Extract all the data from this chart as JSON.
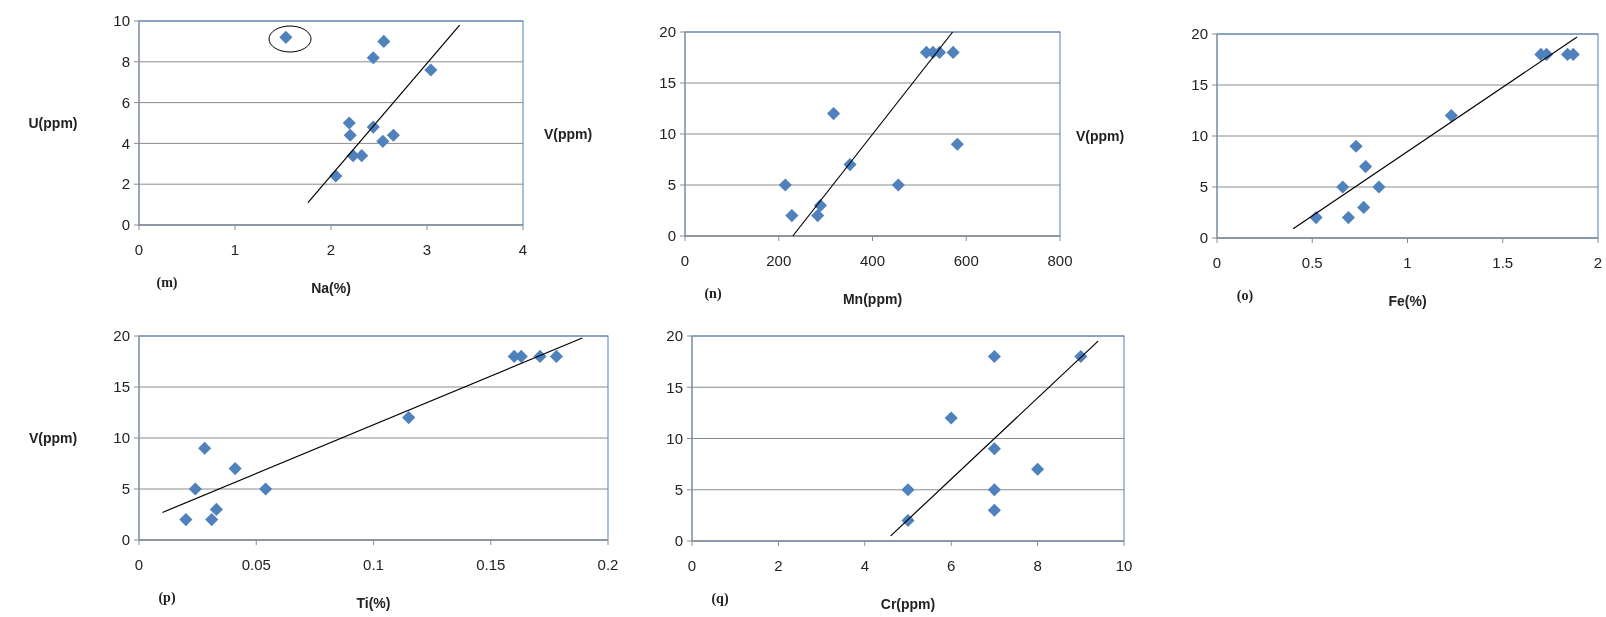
{
  "chart_data": [
    {
      "type": "scatter",
      "xlabel": "Na(%)",
      "ylabel": "U(ppm)",
      "annotations": [
        "(m)"
      ],
      "xlim": [
        0,
        4
      ],
      "xticks": [
        0,
        1,
        2,
        3,
        4
      ],
      "ylim": [
        0,
        10
      ],
      "yticks": [
        0,
        2,
        4,
        6,
        8,
        10
      ],
      "grid": "y",
      "series": [
        {
          "type": "scatter",
          "marker": "diamond",
          "color": "#4f81bd",
          "x": [
            1.53,
            2.55,
            2.44,
            3.04,
            2.19,
            2.44,
            2.2,
            2.65,
            2.54,
            2.23,
            2.32,
            2.05
          ],
          "values": [
            9.2,
            9.0,
            8.2,
            7.6,
            5.0,
            4.8,
            4.4,
            4.4,
            4.1,
            3.4,
            3.4,
            2.4
          ]
        },
        {
          "type": "line",
          "marker": "none",
          "color": "#000000",
          "x": [
            1.76,
            3.34
          ],
          "values": [
            1.1,
            9.8
          ]
        }
      ]
    },
    {
      "type": "scatter",
      "xlabel": "Mn(ppm)",
      "ylabel": "V(ppm)",
      "annotations": [
        "(n)"
      ],
      "xlim": [
        0,
        800
      ],
      "xticks": [
        0,
        200,
        400,
        600,
        800
      ],
      "ylim": [
        0,
        20
      ],
      "yticks": [
        0,
        5,
        10,
        15,
        20
      ],
      "grid": "y",
      "series": [
        {
          "type": "scatter",
          "marker": "diamond",
          "color": "#4f81bd",
          "x": [
            214,
            228,
            283,
            289,
            317,
            352,
            455,
            515,
            529,
            543,
            572,
            581
          ],
          "values": [
            5,
            2,
            2,
            3,
            12,
            7,
            5,
            18,
            18,
            18,
            18,
            9
          ]
        },
        {
          "type": "line",
          "marker": "none",
          "color": "#000000",
          "x": [
            230,
            571
          ],
          "values": [
            0,
            20
          ]
        }
      ]
    },
    {
      "type": "scatter",
      "xlabel": "Fe(%)",
      "ylabel": "V(ppm)",
      "annotations": [
        "(o)"
      ],
      "xlim": [
        0,
        2
      ],
      "xticks": [
        0,
        0.5,
        1,
        1.5,
        2
      ],
      "ylim": [
        0,
        20
      ],
      "yticks": [
        0,
        5,
        10,
        15,
        20
      ],
      "grid": "y",
      "series": [
        {
          "type": "scatter",
          "marker": "diamond",
          "color": "#4f81bd",
          "x": [
            0.52,
            0.66,
            0.69,
            0.73,
            0.77,
            0.78,
            0.85,
            1.23,
            1.7,
            1.73,
            1.84,
            1.87
          ],
          "values": [
            2,
            5,
            2,
            9,
            3,
            7,
            5,
            12,
            18,
            18,
            18,
            18
          ]
        },
        {
          "type": "line",
          "marker": "none",
          "color": "#000000",
          "x": [
            0.4,
            1.89
          ],
          "values": [
            0.9,
            19.7
          ]
        }
      ]
    },
    {
      "type": "scatter",
      "xlabel": "Ti(%)",
      "ylabel": "V(ppm)",
      "annotations": [
        "(p)"
      ],
      "xlim": [
        0,
        0.2
      ],
      "xticks": [
        0,
        0.05,
        0.1,
        0.15,
        0.2
      ],
      "ylim": [
        0,
        20
      ],
      "yticks": [
        0,
        5,
        10,
        15,
        20
      ],
      "grid": "y",
      "series": [
        {
          "type": "scatter",
          "marker": "diamond",
          "color": "#4f81bd",
          "x": [
            0.02,
            0.024,
            0.028,
            0.031,
            0.033,
            0.041,
            0.054,
            0.115,
            0.16,
            0.163,
            0.171,
            0.178
          ],
          "values": [
            2,
            5,
            9,
            2,
            3,
            7,
            5,
            12,
            18,
            18,
            18,
            18
          ]
        },
        {
          "type": "line",
          "marker": "none",
          "color": "#000000",
          "x": [
            0.01,
            0.189
          ],
          "values": [
            2.7,
            19.8
          ]
        }
      ]
    },
    {
      "type": "scatter",
      "xlabel": "Cr(ppm)",
      "annotations": [
        "(q)"
      ],
      "xlim": [
        0,
        10
      ],
      "xticks": [
        0,
        2,
        4,
        6,
        8,
        10
      ],
      "ylim": [
        0,
        20
      ],
      "yticks": [
        0,
        5,
        10,
        15,
        20
      ],
      "grid": "y",
      "series": [
        {
          "type": "scatter",
          "marker": "diamond",
          "color": "#4f81bd",
          "x": [
            5,
            5,
            6,
            7,
            7,
            7,
            7,
            8,
            9
          ],
          "values": [
            2,
            5,
            12,
            18,
            9,
            5,
            3,
            7,
            18
          ]
        },
        {
          "type": "line",
          "marker": "none",
          "color": "#000000",
          "x": [
            4.6,
            9.4
          ],
          "values": [
            0.5,
            19.5
          ]
        }
      ]
    }
  ]
}
